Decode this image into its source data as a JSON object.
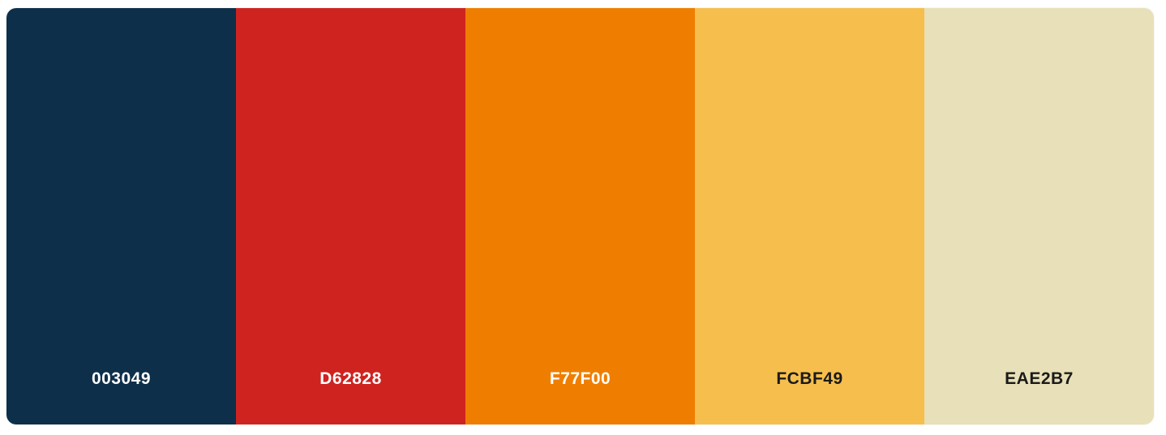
{
  "palette": {
    "swatches": [
      {
        "hex": "003049",
        "color": "#0d2f4a",
        "text_color": "#ffffff"
      },
      {
        "hex": "D62828",
        "color": "#cf2320",
        "text_color": "#ffffff"
      },
      {
        "hex": "F77F00",
        "color": "#ef7e00",
        "text_color": "#ffffff"
      },
      {
        "hex": "FCBF49",
        "color": "#f6bf4d",
        "text_color": "#1a1a1a"
      },
      {
        "hex": "EAE2B7",
        "color": "#e8e0b8",
        "text_color": "#1a1a1a"
      }
    ]
  }
}
